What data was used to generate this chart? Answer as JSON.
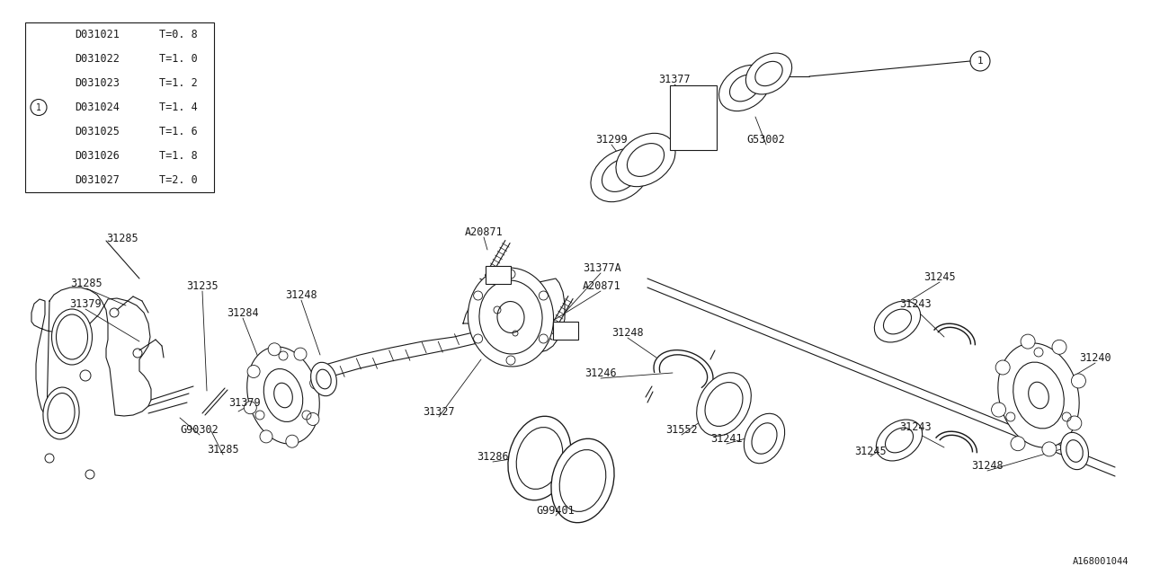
{
  "bg_color": "#ffffff",
  "line_color": "#1a1a1a",
  "diagram_id": "A168001044",
  "table": {
    "rows": [
      {
        "part": "D031021",
        "thickness": "T=0. 8",
        "circle": false
      },
      {
        "part": "D031022",
        "thickness": "T=1. 0",
        "circle": false
      },
      {
        "part": "D031023",
        "thickness": "T=1. 2",
        "circle": false
      },
      {
        "part": "D031024",
        "thickness": "T=1. 4",
        "circle": true
      },
      {
        "part": "D031025",
        "thickness": "T=1. 6",
        "circle": false
      },
      {
        "part": "D031026",
        "thickness": "T=1. 8",
        "circle": false
      },
      {
        "part": "D031027",
        "thickness": "T=2. 0",
        "circle": false
      }
    ]
  },
  "font_size": 8.5
}
